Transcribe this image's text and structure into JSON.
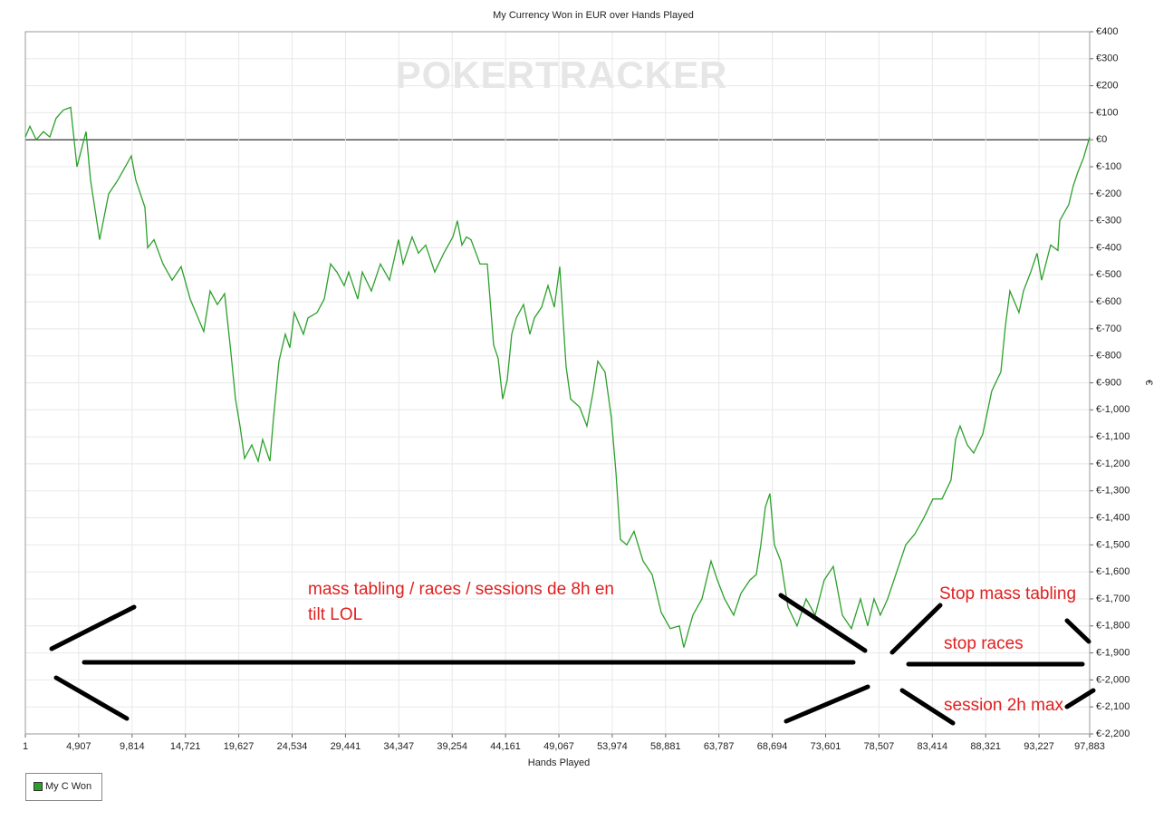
{
  "chart_data": {
    "type": "line",
    "title": "My Currency Won in EUR over Hands Played",
    "watermark": "POKERTRACKER",
    "x_label": "Hands Played",
    "y_label": "€",
    "grid": true,
    "legend": "bottom-left",
    "xlim": [
      1,
      97883
    ],
    "ylim": [
      -2200,
      400
    ],
    "xticks": [
      1,
      {
        "value": 4907,
        "label": "4,907"
      },
      {
        "value": 9814,
        "label": "9,814"
      },
      {
        "value": 14721,
        "label": "14,721"
      },
      {
        "value": 19627,
        "label": "19,627"
      },
      {
        "value": 24534,
        "label": "24,534"
      },
      {
        "value": 29441,
        "label": "29,441"
      },
      {
        "value": 34347,
        "label": "34,347"
      },
      {
        "value": 39254,
        "label": "39,254"
      },
      {
        "value": 44161,
        "label": "44,161"
      },
      {
        "value": 49067,
        "label": "49,067"
      },
      {
        "value": 53974,
        "label": "53,974"
      },
      {
        "value": 58881,
        "label": "58,881"
      },
      {
        "value": 63787,
        "label": "63,787"
      },
      {
        "value": 68694,
        "label": "68,694"
      },
      {
        "value": 73601,
        "label": "73,601"
      },
      {
        "value": 78507,
        "label": "78,507"
      },
      {
        "value": 83414,
        "label": "83,414"
      },
      {
        "value": 88321,
        "label": "88,321"
      },
      {
        "value": 93227,
        "label": "93,227"
      },
      {
        "value": 97883,
        "label": "97,883"
      }
    ],
    "yticks": [
      {
        "value": 400,
        "label": "€400"
      },
      {
        "value": 300,
        "label": "€300"
      },
      {
        "value": 200,
        "label": "€200"
      },
      {
        "value": 100,
        "label": "€100"
      },
      {
        "value": 0,
        "label": "€0"
      },
      {
        "value": -100,
        "label": "€-100"
      },
      {
        "value": -200,
        "label": "€-200"
      },
      {
        "value": -300,
        "label": "€-300"
      },
      {
        "value": -400,
        "label": "€-400"
      },
      {
        "value": -500,
        "label": "€-500"
      },
      {
        "value": -600,
        "label": "€-600"
      },
      {
        "value": -700,
        "label": "€-700"
      },
      {
        "value": -800,
        "label": "€-800"
      },
      {
        "value": -900,
        "label": "€-900"
      },
      {
        "value": -1000,
        "label": "€-1,000"
      },
      {
        "value": -1100,
        "label": "€-1,100"
      },
      {
        "value": -1200,
        "label": "€-1,200"
      },
      {
        "value": -1300,
        "label": "€-1,300"
      },
      {
        "value": -1400,
        "label": "€-1,400"
      },
      {
        "value": -1500,
        "label": "€-1,500"
      },
      {
        "value": -1600,
        "label": "€-1,600"
      },
      {
        "value": -1700,
        "label": "€-1,700"
      },
      {
        "value": -1800,
        "label": "€-1,800"
      },
      {
        "value": -1900,
        "label": "€-1,900"
      },
      {
        "value": -2000,
        "label": "€-2,000"
      },
      {
        "value": -2100,
        "label": "€-2,100"
      },
      {
        "value": -2200,
        "label": "€-2,200"
      }
    ],
    "x": [
      1,
      417,
      1000,
      1666,
      2249,
      2832,
      3499,
      4165,
      4748,
      5581,
      5998,
      6831,
      7664,
      8497,
      9329,
      9746,
      10163,
      10996,
      11246,
      11829,
      12662,
      13495,
      14328,
      15161,
      15994,
      16410,
      16993,
      17660,
      18326,
      18909,
      19326,
      19742,
      20159,
      20825,
      21408,
      21825,
      22491,
      22824,
      23324,
      23907,
      24324,
      24740,
      25573,
      25990,
      26823,
      27489,
      28072,
      28655,
      29322,
      29738,
      30571,
      30988,
      31821,
      32654,
      33487,
      34320,
      34736,
      35569,
      36152,
      36819,
      37652,
      38485,
      39318,
      39734,
      40151,
      40567,
      40984,
      41817,
      42483,
      43066,
      43483,
      43899,
      44316,
      44732,
      45149,
      45815,
      46398,
      46815,
      47481,
      48064,
      48647,
      49147,
      49730,
      50147,
      50980,
      51646,
      52229,
      52646,
      53312,
      53895,
      54312,
      54728,
      55311,
      55978,
      56811,
      57644,
      58477,
      59310,
      60143,
      60559,
      61392,
      62225,
      63058,
      63641,
      64308,
      65141,
      65807,
      66640,
      67223,
      67640,
      68056,
      68473,
      68889,
      69472,
      70139,
      70972,
      71805,
      72638,
      73471,
      74304,
      75137,
      75970,
      76803,
      77469,
      78052,
      78635,
      79302,
      80135,
      80968,
      81801,
      82634,
      83467,
      84300,
      85133,
      85549,
      85966,
      86632,
      87215,
      88048,
      88881,
      89714,
      90131,
      90547,
      91380,
      91797,
      92463,
      93046,
      93463,
      94296,
      94962,
      95129,
      95962,
      96378,
      96795,
      97295,
      97883
    ],
    "series": [
      {
        "name": "My C Won",
        "color": "#2ca02c",
        "values": [
          10,
          50,
          0,
          30,
          10,
          80,
          110,
          120,
          -100,
          30,
          -150,
          -370,
          -200,
          -150,
          -90,
          -60,
          -150,
          -250,
          -400,
          -370,
          -460,
          -520,
          -470,
          -590,
          -670,
          -710,
          -560,
          -610,
          -570,
          -790,
          -960,
          -1060,
          -1180,
          -1130,
          -1190,
          -1110,
          -1190,
          -1030,
          -820,
          -720,
          -770,
          -640,
          -720,
          -660,
          -640,
          -590,
          -460,
          -490,
          -540,
          -490,
          -590,
          -490,
          -560,
          -460,
          -520,
          -370,
          -460,
          -360,
          -420,
          -390,
          -490,
          -420,
          -360,
          -300,
          -390,
          -360,
          -370,
          -460,
          -460,
          -760,
          -810,
          -960,
          -890,
          -720,
          -660,
          -610,
          -720,
          -660,
          -620,
          -540,
          -620,
          -470,
          -840,
          -960,
          -990,
          -1060,
          -930,
          -820,
          -860,
          -1030,
          -1230,
          -1480,
          -1500,
          -1450,
          -1560,
          -1610,
          -1750,
          -1810,
          -1800,
          -1880,
          -1760,
          -1700,
          -1560,
          -1630,
          -1700,
          -1760,
          -1680,
          -1630,
          -1610,
          -1500,
          -1360,
          -1310,
          -1500,
          -1560,
          -1730,
          -1800,
          -1700,
          -1760,
          -1630,
          -1580,
          -1760,
          -1810,
          -1700,
          -1800,
          -1700,
          -1760,
          -1700,
          -1600,
          -1500,
          -1460,
          -1400,
          -1330,
          -1330,
          -1260,
          -1110,
          -1060,
          -1130,
          -1160,
          -1090,
          -930,
          -860,
          -690,
          -560,
          -640,
          -560,
          -490,
          -420,
          -520,
          -390,
          -410,
          -300,
          -240,
          -170,
          -120,
          -70,
          10
        ]
      }
    ],
    "annotations": [
      "mass tabling / races /  sessions de 8h  en",
      "tilt LOL",
      "Stop mass tabling",
      "stop races",
      "session 2h max"
    ]
  }
}
